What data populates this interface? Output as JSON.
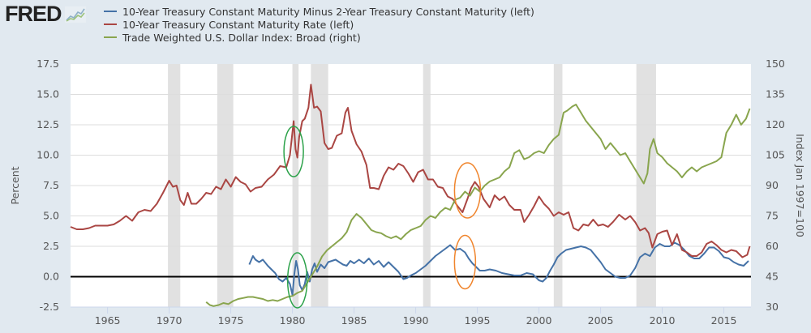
{
  "header": {
    "logo_text": "FRED",
    "logo_icon": "chart-line-icon"
  },
  "chart_data": {
    "type": "line",
    "title": "",
    "xlabel": "",
    "ylabel_left": "Percent",
    "ylabel_right": "Index Jan 1997=100",
    "xlim": [
      1962,
      2017.2
    ],
    "ylim_left": [
      -2.5,
      17.5
    ],
    "ylim_right": [
      30,
      150
    ],
    "x_ticks": [
      "1965",
      "1970",
      "1975",
      "1980",
      "1985",
      "1990",
      "1995",
      "2000",
      "2005",
      "2010",
      "2015"
    ],
    "x_tick_values": [
      1965,
      1970,
      1975,
      1980,
      1985,
      1990,
      1995,
      2000,
      2005,
      2010,
      2015
    ],
    "y_ticks_left": [
      "17.5",
      "15.0",
      "12.5",
      "10.0",
      "7.5",
      "5.0",
      "2.5",
      "0.0",
      "-2.5"
    ],
    "y_tick_values_left": [
      17.5,
      15.0,
      12.5,
      10.0,
      7.5,
      5.0,
      2.5,
      0.0,
      -2.5
    ],
    "y_ticks_right": [
      "150",
      "135",
      "120",
      "105",
      "90",
      "75",
      "60",
      "45",
      "30"
    ],
    "y_tick_values_right": [
      150,
      135,
      120,
      105,
      90,
      75,
      60,
      45,
      30
    ],
    "grid": true,
    "legend_position": "top-left",
    "zero_line": 0,
    "recessions": [
      [
        1969.9,
        1970.9
      ],
      [
        1973.9,
        1975.2
      ],
      [
        1980.0,
        1980.5
      ],
      [
        1981.5,
        1982.9
      ],
      [
        1990.6,
        1991.2
      ],
      [
        2001.2,
        2001.9
      ],
      [
        2007.9,
        2009.5
      ]
    ],
    "series": [
      {
        "name": "10-Year Treasury Constant Maturity Minus 2-Year Treasury Constant Maturity (left)",
        "axis": "left",
        "color": "#4572a7",
        "x": [
          1976.5,
          1976.8,
          1977.0,
          1977.3,
          1977.6,
          1978.0,
          1978.3,
          1978.6,
          1978.9,
          1979.2,
          1979.5,
          1979.8,
          1980.0,
          1980.15,
          1980.3,
          1980.45,
          1980.6,
          1980.8,
          1981.0,
          1981.2,
          1981.4,
          1981.6,
          1981.8,
          1982.0,
          1982.3,
          1982.6,
          1982.9,
          1983.2,
          1983.5,
          1983.8,
          1984.1,
          1984.4,
          1984.7,
          1985.0,
          1985.4,
          1985.8,
          1986.2,
          1986.6,
          1987.0,
          1987.4,
          1987.8,
          1988.2,
          1988.6,
          1989.0,
          1989.3,
          1989.6,
          1990.0,
          1990.4,
          1990.8,
          1991.2,
          1991.6,
          1992.0,
          1992.4,
          1992.8,
          1993.2,
          1993.6,
          1994.0,
          1994.3,
          1994.6,
          1994.9,
          1995.2,
          1995.6,
          1996.0,
          1996.5,
          1997.0,
          1997.5,
          1998.0,
          1998.5,
          1999.0,
          1999.5,
          2000.0,
          2000.3,
          2000.6,
          2000.9,
          2001.2,
          2001.5,
          2001.8,
          2002.2,
          2002.6,
          2003.0,
          2003.4,
          2003.8,
          2004.2,
          2004.6,
          2005.0,
          2005.4,
          2005.8,
          2006.2,
          2006.6,
          2007.0,
          2007.4,
          2007.8,
          2008.2,
          2008.6,
          2009.0,
          2009.4,
          2009.8,
          2010.2,
          2010.6,
          2011.0,
          2011.4,
          2011.8,
          2012.2,
          2012.6,
          2013.0,
          2013.4,
          2013.8,
          2014.2,
          2014.6,
          2015.0,
          2015.4,
          2015.8,
          2016.2,
          2016.6,
          2017.0
        ],
        "values": [
          1.0,
          1.7,
          1.4,
          1.2,
          1.4,
          0.9,
          0.6,
          0.3,
          -0.2,
          -0.4,
          -0.1,
          -0.6,
          -1.5,
          0.2,
          1.3,
          0.6,
          -0.7,
          -1.1,
          -0.6,
          0.4,
          -0.4,
          0.6,
          1.1,
          0.4,
          1.0,
          0.7,
          1.2,
          1.3,
          1.4,
          1.2,
          1.0,
          0.9,
          1.3,
          1.1,
          1.4,
          1.1,
          1.5,
          1.0,
          1.3,
          0.8,
          1.2,
          0.8,
          0.4,
          -0.2,
          -0.1,
          0.1,
          0.3,
          0.6,
          0.9,
          1.3,
          1.7,
          2.0,
          2.3,
          2.6,
          2.2,
          2.3,
          2.0,
          1.5,
          1.1,
          0.8,
          0.5,
          0.5,
          0.6,
          0.5,
          0.3,
          0.2,
          0.1,
          0.1,
          0.3,
          0.2,
          -0.3,
          -0.4,
          -0.1,
          0.5,
          1.0,
          1.6,
          1.9,
          2.2,
          2.3,
          2.4,
          2.5,
          2.4,
          2.2,
          1.7,
          1.2,
          0.6,
          0.3,
          0.0,
          -0.1,
          -0.1,
          0.1,
          0.7,
          1.6,
          1.9,
          1.7,
          2.4,
          2.7,
          2.5,
          2.5,
          2.8,
          2.6,
          2.2,
          1.7,
          1.5,
          1.5,
          1.9,
          2.4,
          2.4,
          2.1,
          1.6,
          1.5,
          1.2,
          1.0,
          0.9,
          1.3
        ]
      },
      {
        "name": "10-Year Treasury Constant Maturity Rate (left)",
        "axis": "left",
        "color": "#aa4643",
        "x": [
          1962.0,
          1962.5,
          1963.0,
          1963.5,
          1964.0,
          1964.5,
          1965.0,
          1965.5,
          1966.0,
          1966.5,
          1967.0,
          1967.5,
          1968.0,
          1968.5,
          1969.0,
          1969.5,
          1970.0,
          1970.3,
          1970.6,
          1970.9,
          1971.2,
          1971.5,
          1971.8,
          1972.2,
          1972.6,
          1973.0,
          1973.4,
          1973.8,
          1974.2,
          1974.6,
          1975.0,
          1975.4,
          1975.8,
          1976.2,
          1976.6,
          1977.0,
          1977.5,
          1978.0,
          1978.5,
          1979.0,
          1979.5,
          1979.8,
          1980.1,
          1980.25,
          1980.4,
          1980.55,
          1980.8,
          1981.0,
          1981.3,
          1981.5,
          1981.75,
          1982.0,
          1982.3,
          1982.6,
          1982.9,
          1983.2,
          1983.6,
          1984.0,
          1984.3,
          1984.5,
          1984.8,
          1985.2,
          1985.6,
          1986.0,
          1986.3,
          1986.6,
          1987.0,
          1987.4,
          1987.8,
          1988.2,
          1988.6,
          1989.0,
          1989.4,
          1989.8,
          1990.2,
          1990.6,
          1991.0,
          1991.4,
          1991.8,
          1992.2,
          1992.6,
          1993.0,
          1993.4,
          1993.8,
          1994.2,
          1994.5,
          1994.8,
          1995.1,
          1995.5,
          1996.0,
          1996.4,
          1996.8,
          1997.2,
          1997.6,
          1998.0,
          1998.5,
          1998.8,
          1999.2,
          1999.6,
          2000.0,
          2000.4,
          2000.8,
          2001.2,
          2001.6,
          2002.0,
          2002.4,
          2002.8,
          2003.2,
          2003.6,
          2004.0,
          2004.4,
          2004.8,
          2005.2,
          2005.6,
          2006.0,
          2006.5,
          2007.0,
          2007.4,
          2007.8,
          2008.2,
          2008.6,
          2008.9,
          2009.2,
          2009.6,
          2010.0,
          2010.4,
          2010.8,
          2011.2,
          2011.6,
          2012.0,
          2012.4,
          2012.8,
          2013.2,
          2013.6,
          2014.0,
          2014.4,
          2014.8,
          2015.2,
          2015.6,
          2016.0,
          2016.5,
          2016.9,
          2017.1
        ],
        "values": [
          4.1,
          3.9,
          3.9,
          4.0,
          4.2,
          4.2,
          4.2,
          4.3,
          4.6,
          5.0,
          4.6,
          5.3,
          5.5,
          5.4,
          6.0,
          6.9,
          7.9,
          7.4,
          7.5,
          6.3,
          5.9,
          6.9,
          6.0,
          6.0,
          6.4,
          6.9,
          6.8,
          7.4,
          7.2,
          8.0,
          7.4,
          8.2,
          7.8,
          7.6,
          7.0,
          7.3,
          7.4,
          8.0,
          8.4,
          9.1,
          9.0,
          10.0,
          12.8,
          10.5,
          9.8,
          11.5,
          12.8,
          13.0,
          13.9,
          15.8,
          13.9,
          14.0,
          13.6,
          11.0,
          10.5,
          10.6,
          11.6,
          11.8,
          13.5,
          13.9,
          12.0,
          10.9,
          10.3,
          9.2,
          7.3,
          7.3,
          7.2,
          8.3,
          9.0,
          8.8,
          9.3,
          9.1,
          8.5,
          7.8,
          8.6,
          8.8,
          8.0,
          8.0,
          7.4,
          7.3,
          6.6,
          6.4,
          5.8,
          5.3,
          6.4,
          7.3,
          7.8,
          7.4,
          6.4,
          5.7,
          6.7,
          6.3,
          6.6,
          5.9,
          5.5,
          5.5,
          4.5,
          5.1,
          5.8,
          6.6,
          6.0,
          5.6,
          5.0,
          5.3,
          5.1,
          5.3,
          4.0,
          3.8,
          4.3,
          4.2,
          4.7,
          4.2,
          4.3,
          4.1,
          4.5,
          5.1,
          4.7,
          5.0,
          4.5,
          3.8,
          4.0,
          3.6,
          2.4,
          3.5,
          3.7,
          3.8,
          2.6,
          3.5,
          2.2,
          2.0,
          1.7,
          1.7,
          2.0,
          2.7,
          2.9,
          2.6,
          2.2,
          2.0,
          2.2,
          2.1,
          1.6,
          1.8,
          2.5
        ]
      },
      {
        "name": "Trade Weighted U.S. Dollar Index: Broad (right)",
        "axis": "right",
        "color": "#89a54e",
        "x": [
          1973.0,
          1973.3,
          1973.6,
          1974.0,
          1974.4,
          1974.8,
          1975.2,
          1975.6,
          1976.0,
          1976.4,
          1976.8,
          1977.2,
          1977.6,
          1978.0,
          1978.4,
          1978.8,
          1979.2,
          1979.6,
          1980.0,
          1980.4,
          1980.8,
          1981.2,
          1981.6,
          1982.0,
          1982.4,
          1982.8,
          1983.2,
          1983.6,
          1984.0,
          1984.4,
          1984.8,
          1985.2,
          1985.6,
          1986.0,
          1986.4,
          1986.8,
          1987.2,
          1987.6,
          1988.0,
          1988.4,
          1988.8,
          1989.2,
          1989.6,
          1990.0,
          1990.4,
          1990.8,
          1991.2,
          1991.6,
          1992.0,
          1992.4,
          1992.8,
          1993.2,
          1993.6,
          1994.0,
          1994.4,
          1994.8,
          1995.2,
          1995.6,
          1996.0,
          1996.4,
          1996.8,
          1997.2,
          1997.6,
          1998.0,
          1998.4,
          1998.8,
          1999.2,
          1999.6,
          2000.0,
          2000.4,
          2000.8,
          2001.2,
          2001.6,
          2002.0,
          2002.3,
          2002.7,
          2003.0,
          2003.4,
          2003.8,
          2004.2,
          2004.6,
          2005.0,
          2005.4,
          2005.8,
          2006.2,
          2006.6,
          2007.0,
          2007.4,
          2007.8,
          2008.2,
          2008.5,
          2008.8,
          2009.0,
          2009.3,
          2009.6,
          2010.0,
          2010.4,
          2010.8,
          2011.2,
          2011.6,
          2012.0,
          2012.4,
          2012.8,
          2013.2,
          2013.6,
          2014.0,
          2014.4,
          2014.8,
          2015.2,
          2015.6,
          2016.0,
          2016.4,
          2016.8,
          2017.1
        ],
        "values": [
          32.5,
          31.0,
          30.5,
          31.0,
          32.0,
          31.5,
          33.0,
          34.0,
          34.5,
          35.0,
          35.0,
          34.5,
          34.0,
          33.0,
          33.5,
          33.0,
          34.0,
          35.0,
          35.5,
          37.0,
          38.0,
          42.0,
          46.0,
          50.0,
          55.0,
          58.0,
          60.0,
          62.0,
          64.0,
          67.0,
          73.0,
          76.0,
          74.0,
          71.0,
          68.0,
          67.0,
          66.5,
          65.0,
          64.0,
          65.0,
          63.5,
          66.0,
          68.0,
          69.0,
          70.0,
          73.0,
          75.0,
          74.0,
          77.0,
          79.0,
          78.0,
          83.0,
          84.0,
          87.0,
          85.0,
          89.0,
          87.0,
          90.0,
          92.0,
          93.0,
          94.0,
          97.0,
          99.0,
          106.0,
          107.5,
          103.0,
          104.0,
          106.0,
          107.0,
          106.0,
          110.0,
          113.0,
          115.0,
          126.0,
          127.0,
          129.0,
          130.0,
          126.0,
          122.0,
          119.0,
          116.0,
          113.0,
          108.0,
          111.0,
          108.0,
          105.0,
          106.0,
          102.0,
          98.0,
          94.0,
          91.0,
          96.0,
          108.0,
          113.0,
          106.0,
          104.0,
          101.0,
          99.0,
          97.0,
          94.0,
          97.0,
          99.0,
          97.0,
          99.0,
          100.0,
          101.0,
          102.0,
          104.0,
          116.0,
          120.0,
          125.0,
          120.0,
          123.0,
          128.0
        ]
      }
    ],
    "annotations": [
      {
        "shape": "ellipse",
        "color": "#2ca24a",
        "x": 1980.1,
        "axis": "left",
        "y": 10.3,
        "label": ""
      },
      {
        "shape": "ellipse",
        "color": "#2ca24a",
        "x": 1980.4,
        "axis": "left",
        "y": -0.3,
        "label": ""
      },
      {
        "shape": "ellipse",
        "color": "#f0852d",
        "x": 1994.2,
        "axis": "left",
        "y": 7.1,
        "label": ""
      },
      {
        "shape": "ellipse",
        "color": "#f0852d",
        "x": 1994.0,
        "axis": "left",
        "y": 1.2,
        "label": ""
      }
    ]
  },
  "colors": {
    "background": "#e1e9f0",
    "plot_background": "#ffffff",
    "gridline": "#dddddd",
    "recession": "#e1e1e1",
    "zero_line": "#000000"
  }
}
